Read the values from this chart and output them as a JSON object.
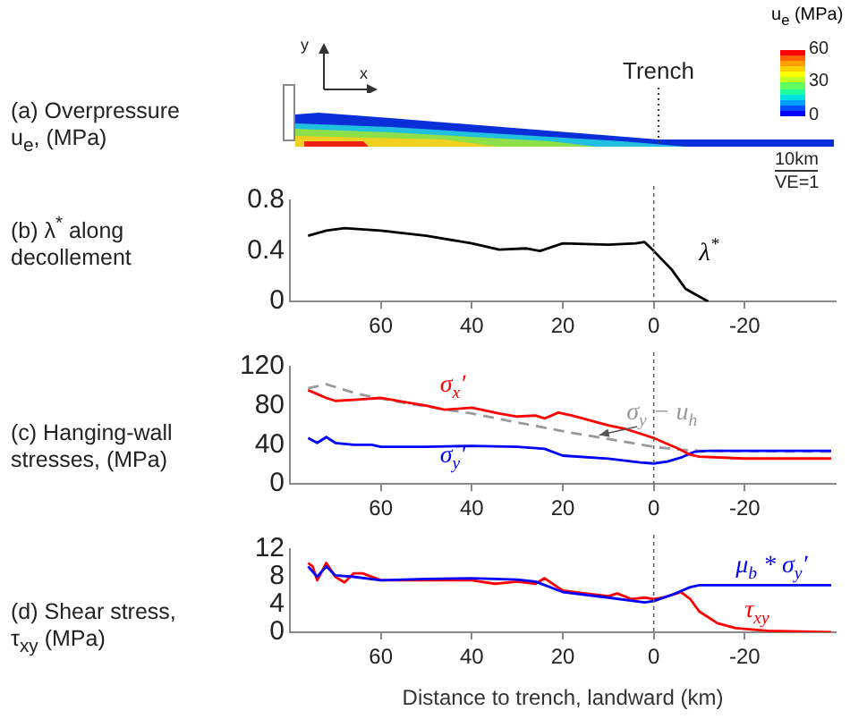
{
  "chart_data": [
    {
      "type": "other",
      "title": "(a) Overpressure u$_{e}$, (MPa)",
      "clabel": "u$_{e}$ (MPa)",
      "annotations": [
        "Trench",
        "10km",
        "VE=1",
        "y",
        "x",
        "60",
        "30",
        "0"
      ]
    },
    {
      "type": "line",
      "title": "(b) λ$^{*}$ along decollement",
      "xlim": [
        80,
        -40
      ],
      "xticks": [
        60,
        40,
        20,
        0,
        -20
      ],
      "ylim": [
        0,
        0.8
      ],
      "yticks": [
        0,
        0.4,
        0.8
      ],
      "grid": false,
      "legend": false,
      "ref_lines": [
        {
          "axis": "x",
          "value": 0,
          "color": "#666666",
          "line_style": "dotted"
        }
      ],
      "series": [
        {
          "name": "λ$^{*}$",
          "color": "#000000",
          "x": [
            76,
            72,
            68,
            60,
            50,
            40,
            34,
            28,
            25,
            20,
            10,
            4,
            2,
            0,
            -4,
            -7,
            -9,
            -12
          ],
          "values": [
            0.52,
            0.56,
            0.58,
            0.56,
            0.52,
            0.46,
            0.41,
            0.42,
            0.4,
            0.46,
            0.45,
            0.46,
            0.47,
            0.4,
            0.25,
            0.1,
            0.06,
            0
          ]
        }
      ]
    },
    {
      "type": "line",
      "title": "(c) Hanging-wall stresses, (MPa)",
      "xlim": [
        80,
        -40
      ],
      "xticks": [
        60,
        40,
        20,
        0,
        -20
      ],
      "ylim": [
        0,
        120
      ],
      "yticks": [
        0,
        40,
        80,
        120
      ],
      "grid": false,
      "legend": false,
      "ref_lines": [
        {
          "axis": "x",
          "value": 0,
          "color": "#666666",
          "line_style": "dotted"
        }
      ],
      "series": [
        {
          "name": "σ$_{x}$′",
          "color": "#ff0000",
          "x": [
            76,
            74,
            72,
            70,
            66,
            60,
            55,
            50,
            46,
            40,
            34,
            30,
            26,
            24,
            21,
            18,
            14,
            10,
            6,
            2,
            0,
            -2,
            -5,
            -8,
            -10,
            -20,
            -39
          ],
          "values": [
            96,
            92,
            88,
            85,
            86,
            88,
            84,
            80,
            76,
            78,
            72,
            69,
            70,
            67,
            73,
            70,
            65,
            60,
            56,
            50,
            47,
            43,
            37,
            30,
            28,
            26,
            26
          ]
        },
        {
          "name": "σ$_{y}$′",
          "color": "#0000ff",
          "x": [
            76,
            74,
            72,
            70,
            66,
            62,
            60,
            50,
            40,
            30,
            24,
            20,
            10,
            3,
            0,
            -3,
            -6,
            -9,
            -12,
            -39
          ],
          "values": [
            47,
            42,
            48,
            42,
            40,
            40,
            38,
            38,
            39,
            38,
            36,
            29,
            26,
            22,
            21,
            23,
            27,
            33,
            34,
            34
          ]
        },
        {
          "name": "σ$_{y}$ − u$_{h}$",
          "color": "#999999",
          "line_style": "dashed",
          "x": [
            76,
            72,
            65,
            55,
            40,
            20,
            10,
            0,
            -6,
            -10,
            -39
          ],
          "values": [
            98,
            102,
            92,
            83,
            72,
            54,
            46,
            38,
            35,
            34,
            33
          ]
        }
      ]
    },
    {
      "type": "line",
      "title": "(d) Shear stress, τ$_{xy}$ (MPa)",
      "xlabel": "Distance to trench, landward (km)",
      "xlim": [
        80,
        -40
      ],
      "xticks": [
        60,
        40,
        20,
        0,
        -20
      ],
      "ylim": [
        0,
        12
      ],
      "yticks": [
        0,
        4,
        8,
        12
      ],
      "grid": false,
      "legend": false,
      "ref_lines": [
        {
          "axis": "x",
          "value": 0,
          "color": "#666666",
          "line_style": "dotted"
        }
      ],
      "series": [
        {
          "name": "μ$_{b}$ * σ$_{y}$′",
          "color": "#0000ff",
          "x": [
            76,
            74,
            72,
            70,
            66,
            60,
            50,
            40,
            30,
            26,
            20,
            10,
            2,
            0,
            -4,
            -8,
            -10,
            -39
          ],
          "values": [
            9.5,
            8,
            9.5,
            8.2,
            8,
            7.5,
            7.7,
            7.8,
            7.6,
            7.3,
            5.8,
            5,
            4.3,
            4.5,
            5.4,
            6.5,
            6.8,
            6.8
          ]
        },
        {
          "name": "τ$_{xy}$",
          "color": "#ff0000",
          "x": [
            76,
            75,
            74,
            72,
            70,
            68,
            66,
            64,
            60,
            50,
            40,
            35,
            30,
            26,
            24,
            20,
            15,
            10,
            8,
            5,
            2,
            0,
            -2,
            -6,
            -8,
            -10,
            -14,
            -18,
            -25,
            -39
          ],
          "values": [
            10,
            9.5,
            7.5,
            10,
            8,
            7.2,
            8.5,
            8.5,
            7.5,
            7.5,
            7.5,
            7,
            7.3,
            7,
            7.8,
            6,
            5.6,
            5.2,
            5.6,
            4.8,
            5,
            4.8,
            5,
            5.8,
            4.8,
            3,
            1.3,
            0.6,
            0.2,
            0
          ]
        }
      ]
    }
  ]
}
